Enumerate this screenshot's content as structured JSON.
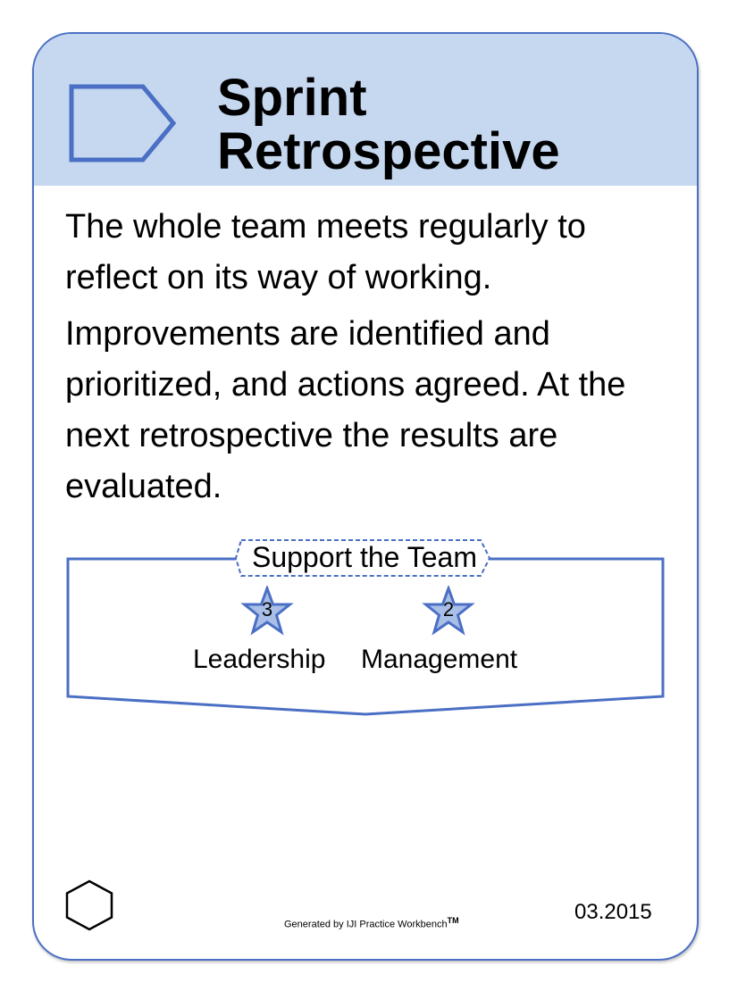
{
  "card": {
    "title": "Sprint\nRetrospective",
    "description": [
      "The whole team meets regularly to reflect on its way of working.",
      "Improvements are identified and prioritized, and actions agreed. At the next retrospective the results are evaluated."
    ],
    "group": {
      "label": "Support the Team",
      "competencies": [
        {
          "name": "Leadership",
          "level": "3"
        },
        {
          "name": "Management",
          "level": "2"
        }
      ]
    },
    "footer": {
      "generated_by": "Generated by IJI Practice Workbench",
      "trademark": "TM",
      "date": "03.2015"
    }
  },
  "colors": {
    "header_bg": "#c6d8f0",
    "accent_blue": "#4a6fc4",
    "star_fill": "#a9bfe8"
  },
  "icons": {
    "header": "activity-arrow-icon",
    "footer": "hexagon-icon",
    "competency": "star-icon"
  }
}
